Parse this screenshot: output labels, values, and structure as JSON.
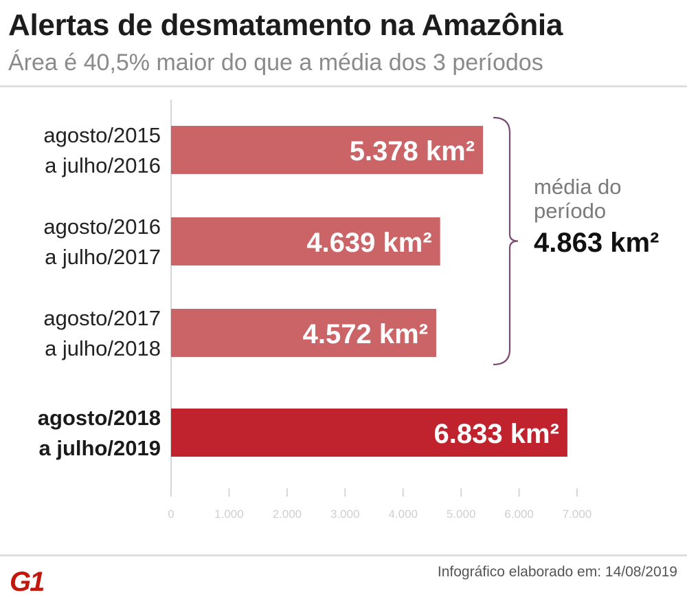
{
  "header": {
    "title": "Alertas de desmatamento na Amazônia",
    "subtitle": "Área é 40,5% maior do que a média dos 3 períodos"
  },
  "chart_data": {
    "type": "bar",
    "orientation": "horizontal",
    "categories": [
      [
        "agosto/2015",
        "a julho/2016"
      ],
      [
        "agosto/2016",
        "a julho/2017"
      ],
      [
        "agosto/2017",
        "a julho/2018"
      ],
      [
        "agosto/2018",
        "a julho/2019"
      ]
    ],
    "values": [
      5378,
      4639,
      4572,
      6833
    ],
    "value_labels": [
      "5.378 km²",
      "4.639 km²",
      "4.572 km²",
      "6.833 km²"
    ],
    "x_ticks": [
      0,
      1000,
      2000,
      3000,
      4000,
      5000,
      6000,
      7000
    ],
    "x_tick_labels": [
      "0",
      "1.000",
      "2.000",
      "3.000",
      "4.000",
      "5.000",
      "6.000",
      "7.000"
    ],
    "xlim": [
      0,
      7000
    ],
    "grid": false,
    "legend": "none",
    "colors": {
      "bar_default": "#cb6467",
      "bar_highlight": "#c0222e",
      "bracket": "#7a4a73"
    },
    "highlight_index": 3,
    "annotation": {
      "spans_categories": [
        0,
        1,
        2
      ],
      "text_lines": [
        "média do",
        "período"
      ],
      "value": 4863,
      "value_label": "4.863 km²"
    }
  },
  "footer": {
    "credit": "Infográfico elaborado em: 14/08/2019",
    "logo_text": "G1",
    "logo_color": "#c4170c"
  }
}
